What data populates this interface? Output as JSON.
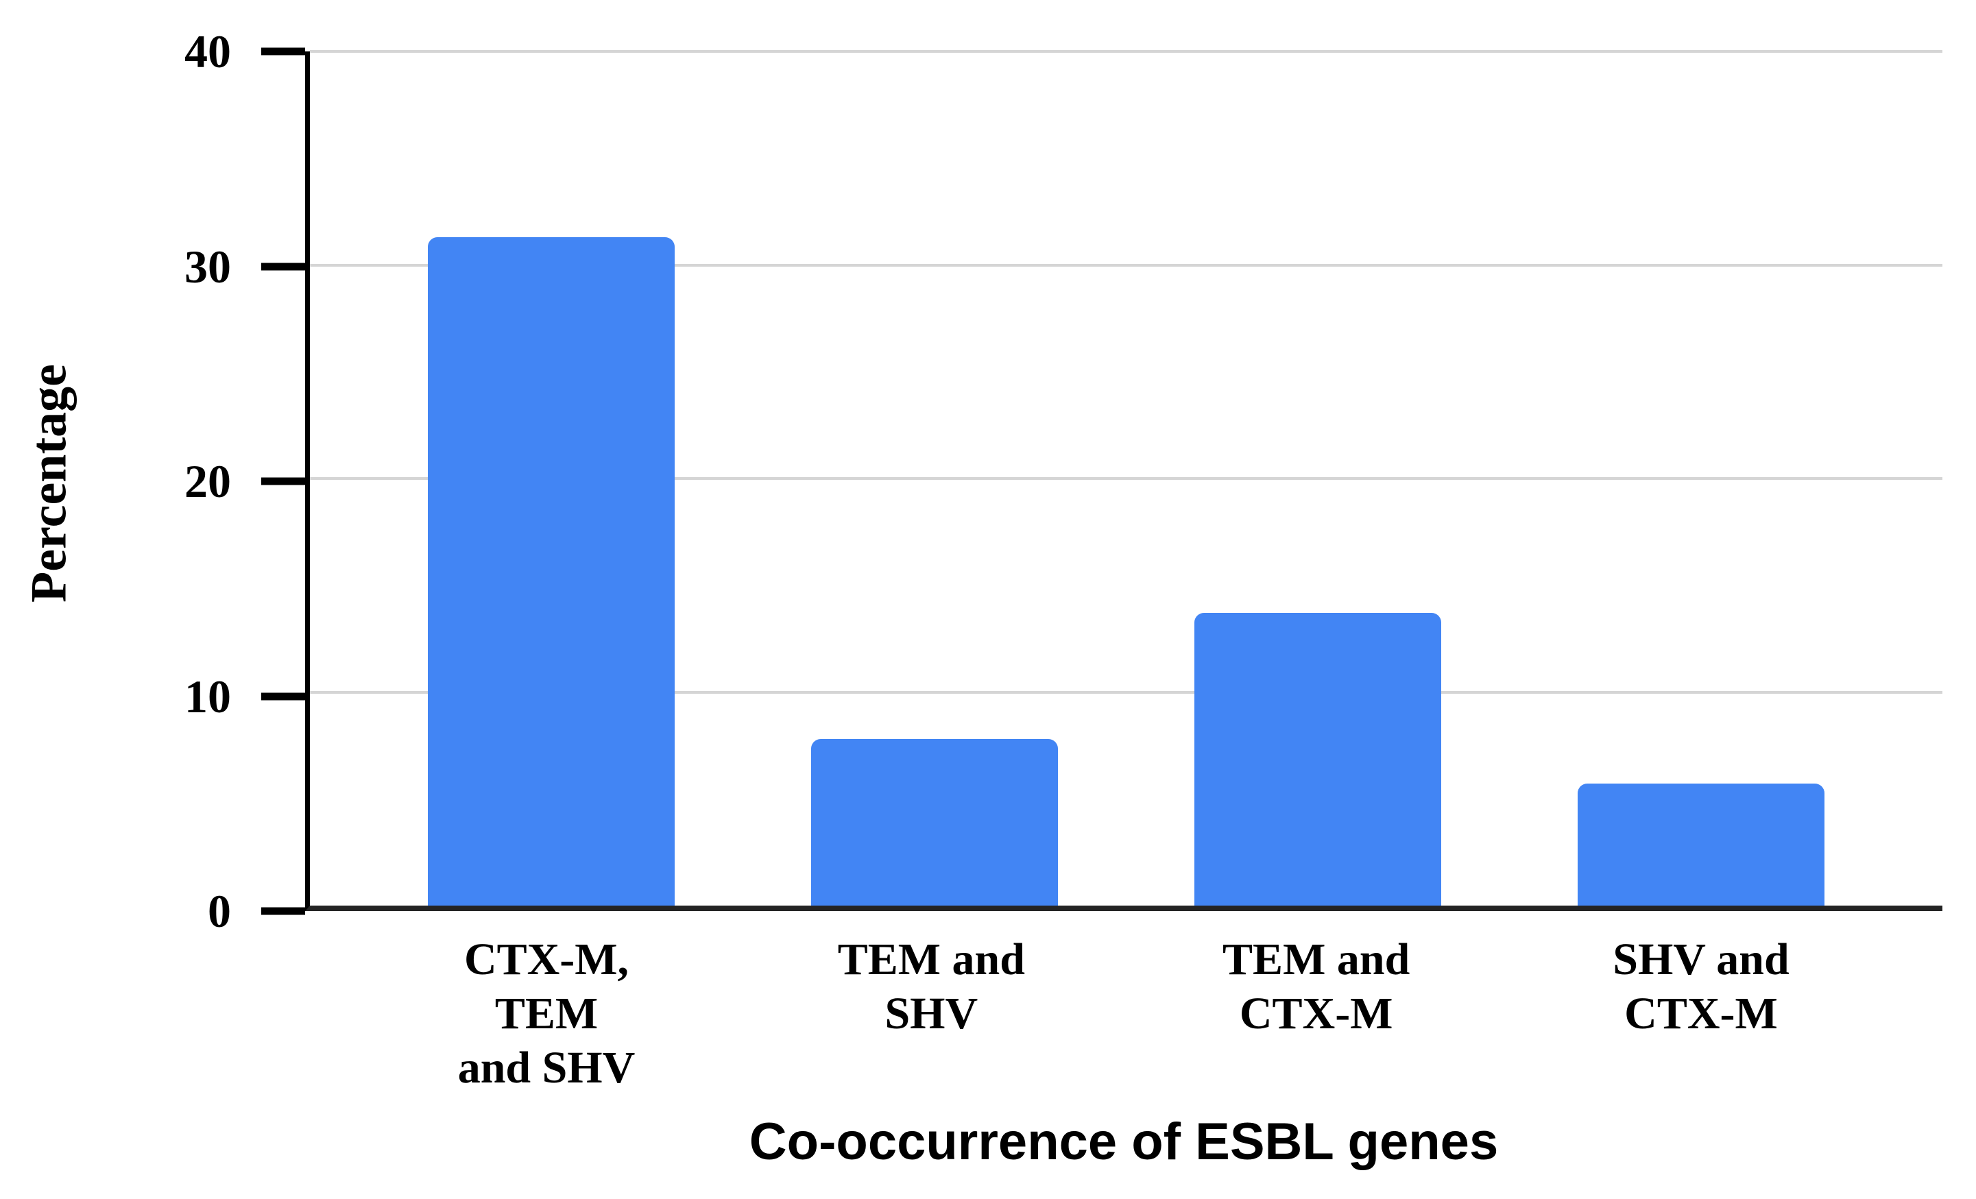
{
  "chart_data": {
    "type": "bar",
    "categories": [
      "CTX-M, TEM\nand SHV",
      "TEM and SHV",
      "TEM and\nCTX-M",
      "SHV and\nCTX-M"
    ],
    "values": [
      31.3,
      7.8,
      13.7,
      5.7
    ],
    "title": "",
    "xlabel": "Co-occurrence of ESBL genes",
    "ylabel": "Percentage",
    "ylim": [
      0,
      40
    ],
    "yticks": [
      0,
      10,
      20,
      30,
      40
    ],
    "grid": "horizontal",
    "legend": "none",
    "bar_color": "#4285F4",
    "gridline_color": "#D5D5D5",
    "axis_color": "#000000",
    "x_axis_line_color": "#242424",
    "text_color": "#000000"
  }
}
